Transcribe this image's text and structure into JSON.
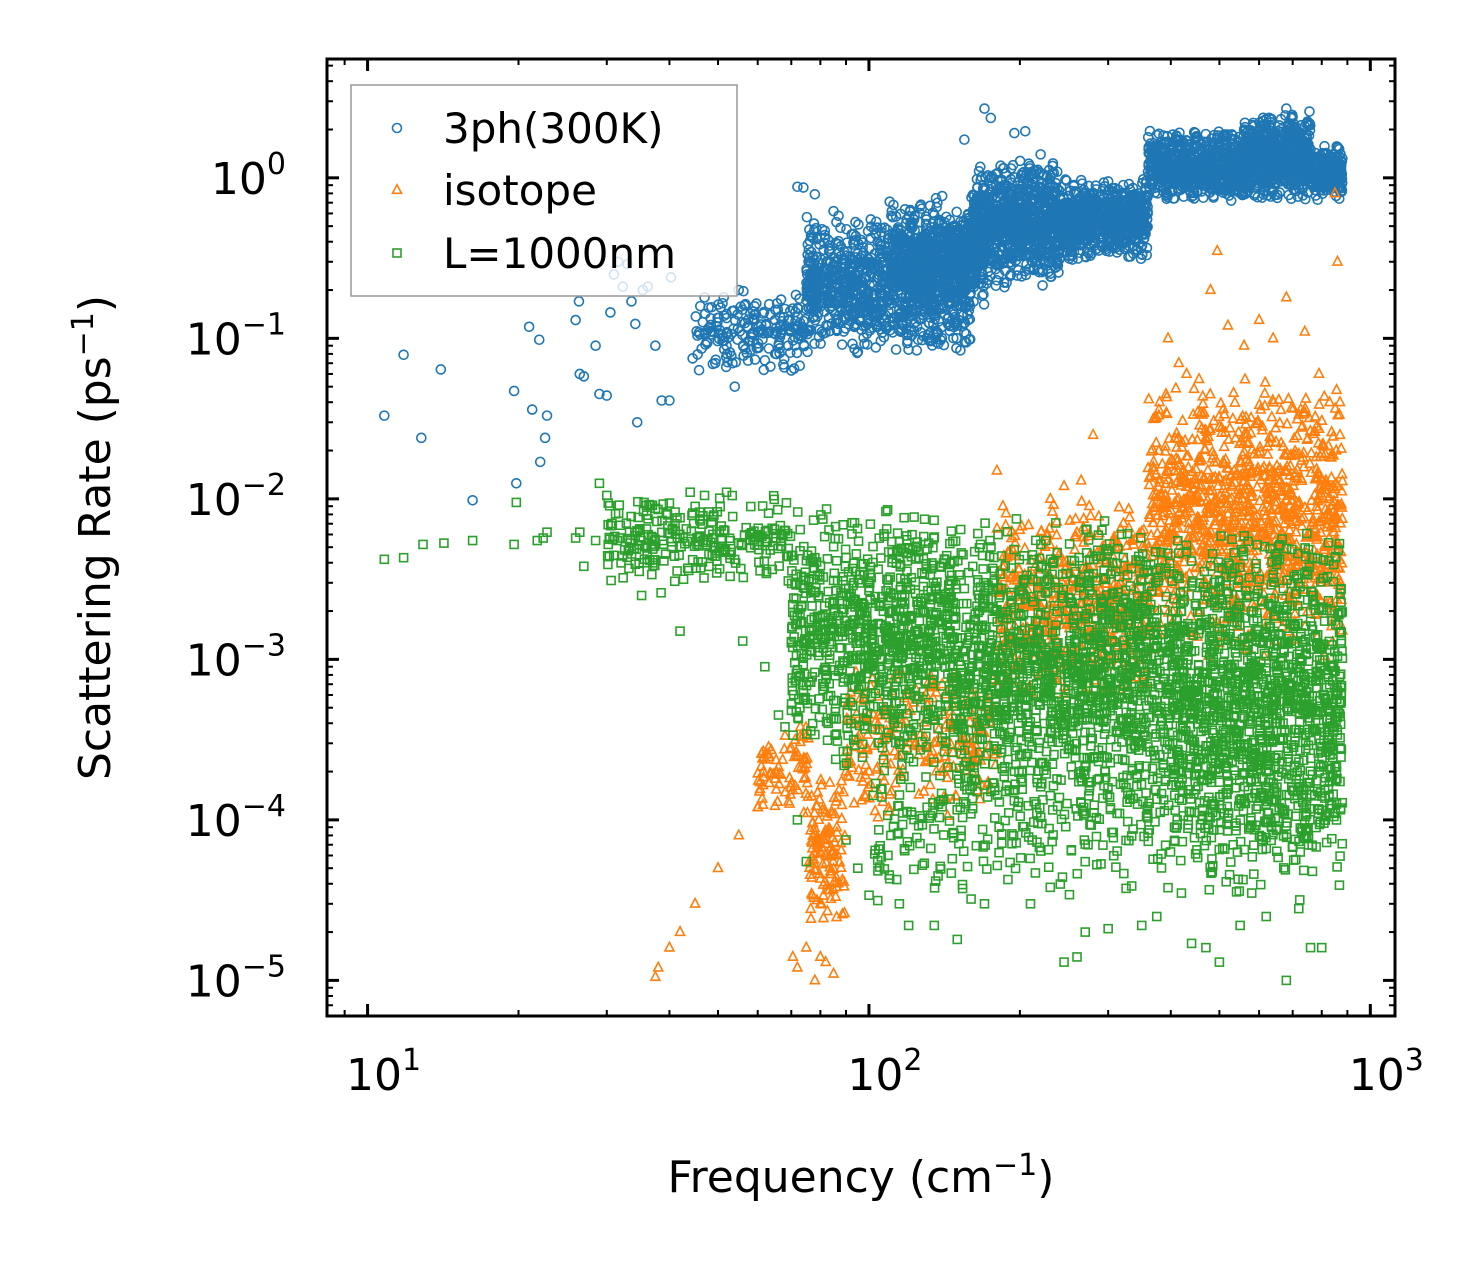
{
  "chart_data": {
    "type": "scatter",
    "title": "",
    "xlabel": "Frequency (cm",
    "xlabel_sup": "−1",
    "xlabel_tail": ")",
    "ylabel": "Scattering Rate (ps",
    "ylabel_sup": "−1",
    "ylabel_tail": ")",
    "xscale": "log",
    "yscale": "log",
    "xlim": [
      8.3,
      1120
    ],
    "ylim": [
      6e-06,
      5.5
    ],
    "x_ticks": [
      {
        "value": 10,
        "base": "10",
        "exp": "1"
      },
      {
        "value": 100,
        "base": "10",
        "exp": "2"
      },
      {
        "value": 1000,
        "base": "10",
        "exp": "3"
      }
    ],
    "y_ticks": [
      {
        "value": 1e-05,
        "base": "10",
        "exp": "−5"
      },
      {
        "value": 0.0001,
        "base": "10",
        "exp": "−4"
      },
      {
        "value": 0.001,
        "base": "10",
        "exp": "−3"
      },
      {
        "value": 0.01,
        "base": "10",
        "exp": "−2"
      },
      {
        "value": 0.1,
        "base": "10",
        "exp": "−1"
      },
      {
        "value": 1,
        "base": "10",
        "exp": "0"
      }
    ],
    "legend_position": "top-left",
    "series": [
      {
        "name": "3ph(300K)",
        "marker": "circle",
        "color": "#1f77b4",
        "points": [
          [
            10.8,
            0.033
          ],
          [
            11.8,
            0.079
          ],
          [
            12.8,
            0.024
          ],
          [
            14.0,
            0.064
          ],
          [
            16.2,
            0.0098
          ],
          [
            19.6,
            0.047
          ],
          [
            19.8,
            0.0125
          ],
          [
            21.0,
            0.118
          ],
          [
            21.3,
            0.036
          ],
          [
            22.0,
            0.098
          ],
          [
            22.1,
            0.017
          ],
          [
            22.6,
            0.024
          ],
          [
            22.8,
            0.033
          ],
          [
            26.0,
            0.13
          ],
          [
            26.4,
            0.17
          ],
          [
            26.5,
            0.06
          ],
          [
            27.0,
            0.058
          ],
          [
            28.5,
            0.09
          ],
          [
            29.0,
            0.045
          ],
          [
            30.0,
            0.044
          ],
          [
            30.5,
            0.145
          ],
          [
            31.0,
            0.25
          ],
          [
            31.6,
            0.3
          ],
          [
            32.3,
            0.21
          ],
          [
            33.0,
            0.29
          ],
          [
            33.6,
            0.17
          ],
          [
            34.2,
            0.123
          ],
          [
            34.5,
            0.03
          ],
          [
            35.4,
            0.2
          ],
          [
            36.2,
            0.21
          ],
          [
            37.5,
            0.09
          ],
          [
            38.6,
            0.041
          ],
          [
            40.0,
            0.041
          ],
          [
            40.3,
            0.24
          ],
          [
            44.5,
            0.075
          ],
          [
            47.0,
            0.18
          ],
          [
            52.0,
            0.09
          ],
          [
            54.0,
            0.05
          ],
          [
            55.0,
            0.2
          ],
          [
            60.0,
            0.11
          ],
          [
            65.0,
            0.13
          ],
          [
            70.0,
            0.063
          ],
          [
            72.0,
            0.88
          ],
          [
            74.0,
            0.87
          ],
          [
            78.0,
            0.79
          ],
          [
            85.0,
            0.62
          ],
          [
            94.0,
            0.53
          ],
          [
            110.0,
            0.71
          ],
          [
            127.0,
            0.68
          ],
          [
            140.0,
            0.77
          ],
          [
            155.0,
            1.73
          ],
          [
            170.0,
            2.7
          ],
          [
            175.0,
            2.36
          ],
          [
            195.0,
            1.9
          ],
          [
            205.0,
            1.95
          ],
          [
            220.0,
            1.4
          ],
          [
            300.0,
            0.95
          ],
          [
            330.0,
            0.75
          ],
          [
            345.0,
            0.8
          ],
          [
            400.0,
            1.3
          ],
          [
            470.0,
            1.6
          ],
          [
            560.0,
            2.0
          ],
          [
            620.0,
            1.6
          ],
          [
            680.0,
            2.7
          ],
          [
            700.0,
            2.4
          ],
          [
            760.0,
            1.5
          ],
          [
            810.0,
            1.4
          ],
          [
            870.0,
            1.2
          ]
        ],
        "bands": [
          {
            "xmin": 45,
            "xmax": 75,
            "low": 0.06,
            "high": 0.2,
            "n": 200
          },
          {
            "xmin": 75,
            "xmax": 160,
            "low": 0.08,
            "high": 0.6,
            "n": 1100
          },
          {
            "xmin": 110,
            "xmax": 170,
            "low": 0.15,
            "high": 0.75,
            "n": 500
          },
          {
            "xmin": 160,
            "xmax": 240,
            "low": 0.2,
            "high": 1.3,
            "n": 900
          },
          {
            "xmin": 240,
            "xmax": 360,
            "low": 0.3,
            "high": 1.0,
            "n": 700
          },
          {
            "xmin": 360,
            "xmax": 560,
            "low": 0.7,
            "high": 2.0,
            "n": 700
          },
          {
            "xmin": 560,
            "xmax": 760,
            "low": 0.7,
            "high": 2.6,
            "n": 700
          },
          {
            "xmin": 760,
            "xmax": 880,
            "low": 0.7,
            "high": 1.6,
            "n": 250
          }
        ]
      },
      {
        "name": "isotope",
        "marker": "triangle",
        "color": "#ff7f0e",
        "points": [
          [
            37.5,
            1.05e-05
          ],
          [
            38.0,
            1.2e-05
          ],
          [
            40.0,
            1.6e-05
          ],
          [
            42.0,
            2e-05
          ],
          [
            45.0,
            3e-05
          ],
          [
            50.0,
            5e-05
          ],
          [
            55.0,
            8e-05
          ],
          [
            60.0,
            0.00012
          ],
          [
            65.0,
            0.00018
          ],
          [
            70.0,
            0.00028
          ],
          [
            73.0,
            0.00038
          ],
          [
            70.5,
            1.4e-05
          ],
          [
            72.0,
            1.2e-05
          ],
          [
            75.0,
            1.6e-05
          ],
          [
            78.0,
            1e-05
          ],
          [
            80.0,
            1.4e-05
          ],
          [
            82.0,
            1.3e-05
          ],
          [
            85.0,
            1.1e-05
          ],
          [
            80.0,
            3e-05
          ],
          [
            82.0,
            6e-05
          ],
          [
            86.0,
            0.00013
          ],
          [
            90.0,
            0.0002
          ],
          [
            100.0,
            0.0002
          ],
          [
            110.0,
            0.00035
          ],
          [
            120.0,
            0.0005
          ],
          [
            130.0,
            0.0006
          ],
          [
            140.0,
            0.0007
          ],
          [
            180.0,
            0.015
          ],
          [
            185.0,
            0.009
          ],
          [
            230.0,
            0.01
          ],
          [
            245.0,
            0.012
          ],
          [
            265.0,
            0.013
          ],
          [
            275.0,
            0.009
          ],
          [
            280.0,
            0.025
          ],
          [
            380.0,
            0.04
          ],
          [
            395.0,
            0.1
          ],
          [
            415.0,
            0.07
          ],
          [
            430.0,
            0.06
          ],
          [
            480.0,
            0.2
          ],
          [
            495.0,
            0.35
          ],
          [
            520.0,
            0.12
          ],
          [
            560.0,
            0.09
          ],
          [
            600.0,
            0.13
          ],
          [
            640.0,
            0.1
          ],
          [
            680.0,
            0.18
          ],
          [
            740.0,
            0.11
          ],
          [
            790.0,
            0.06
          ],
          [
            850.0,
            0.8
          ],
          [
            860.0,
            0.3
          ],
          [
            870.0,
            0.04
          ],
          [
            870.0,
            0.025
          ],
          [
            860.0,
            0.012
          ],
          [
            855.0,
            0.02
          ],
          [
            840.0,
            0.007
          ],
          [
            820.0,
            0.005
          ]
        ],
        "bands": [
          {
            "xmin": 60,
            "xmax": 76,
            "low": 0.0001,
            "high": 0.0004,
            "n": 80
          },
          {
            "xmin": 76,
            "xmax": 90,
            "low": 2e-05,
            "high": 0.0002,
            "n": 120
          },
          {
            "xmin": 90,
            "xmax": 180,
            "low": 0.0001,
            "high": 0.001,
            "n": 250
          },
          {
            "xmin": 180,
            "xmax": 360,
            "low": 0.0005,
            "high": 0.01,
            "n": 500
          },
          {
            "xmin": 360,
            "xmax": 880,
            "low": 0.001,
            "high": 0.06,
            "n": 1100
          }
        ]
      },
      {
        "name": "L=1000nm",
        "marker": "square",
        "color": "#2ca02c",
        "points": [
          [
            10.8,
            0.0042
          ],
          [
            11.8,
            0.0043
          ],
          [
            12.9,
            0.0052
          ],
          [
            14.2,
            0.0053
          ],
          [
            16.2,
            0.0055
          ],
          [
            19.6,
            0.0052
          ],
          [
            19.8,
            0.0095
          ],
          [
            21.8,
            0.0055
          ],
          [
            22.4,
            0.0057
          ],
          [
            22.8,
            0.0062
          ],
          [
            26.0,
            0.0057
          ],
          [
            26.5,
            0.0062
          ],
          [
            27.0,
            0.0038
          ],
          [
            28.5,
            0.0055
          ],
          [
            29.0,
            0.0125
          ],
          [
            30.0,
            0.0105
          ],
          [
            30.2,
            0.0052
          ],
          [
            30.6,
            0.0031
          ],
          [
            31.5,
            0.0055
          ],
          [
            33.3,
            0.0062
          ],
          [
            34.6,
            0.0096
          ],
          [
            34.8,
            0.004
          ],
          [
            35.2,
            0.0025
          ],
          [
            35.6,
            0.0095
          ],
          [
            36.0,
            0.0091
          ],
          [
            38.5,
            0.0026
          ],
          [
            42.0,
            0.0015
          ],
          [
            44.0,
            0.011
          ],
          [
            47.0,
            0.0105
          ],
          [
            52.0,
            0.011
          ],
          [
            56.0,
            0.0013
          ],
          [
            62.0,
            0.0009
          ],
          [
            66.0,
            0.00045
          ],
          [
            68.0,
            0.00038
          ],
          [
            72.0,
            0.0001
          ],
          [
            75.0,
            5.5e-05
          ],
          [
            78.0,
            0.00034
          ],
          [
            90.0,
            7.5e-05
          ],
          [
            95.0,
            5e-05
          ],
          [
            110.0,
            4.3e-05
          ],
          [
            115.0,
            3e-05
          ],
          [
            120.0,
            2.2e-05
          ],
          [
            135.0,
            2.2e-05
          ],
          [
            150.0,
            1.8e-05
          ],
          [
            170.0,
            3e-05
          ],
          [
            210.0,
            3e-05
          ],
          [
            230.0,
            3.8e-05
          ],
          [
            245.0,
            1.3e-05
          ],
          [
            260.0,
            1.4e-05
          ],
          [
            270.0,
            2e-05
          ],
          [
            300.0,
            2.1e-05
          ],
          [
            350.0,
            2.2e-05
          ],
          [
            375.0,
            2.5e-05
          ],
          [
            420.0,
            3.5e-05
          ],
          [
            440.0,
            1.7e-05
          ],
          [
            470.0,
            1.6e-05
          ],
          [
            500.0,
            1.3e-05
          ],
          [
            550.0,
            2.2e-05
          ],
          [
            580.0,
            3.5e-05
          ],
          [
            620.0,
            2.5e-05
          ],
          [
            680.0,
            1e-05
          ],
          [
            720.0,
            2.8e-05
          ],
          [
            760.0,
            1.6e-05
          ],
          [
            800.0,
            1.6e-05
          ]
        ],
        "bands": [
          {
            "xmin": 30,
            "xmax": 70,
            "low": 0.003,
            "high": 0.011,
            "n": 250
          },
          {
            "xmin": 70,
            "xmax": 150,
            "low": 0.0002,
            "high": 0.009,
            "n": 900
          },
          {
            "xmin": 150,
            "xmax": 400,
            "low": 0.0001,
            "high": 0.008,
            "n": 1300
          },
          {
            "xmin": 400,
            "xmax": 880,
            "low": 5e-05,
            "high": 0.007,
            "n": 1300
          },
          {
            "xmin": 100,
            "xmax": 880,
            "low": 3e-05,
            "high": 0.0003,
            "n": 400
          }
        ]
      }
    ]
  }
}
